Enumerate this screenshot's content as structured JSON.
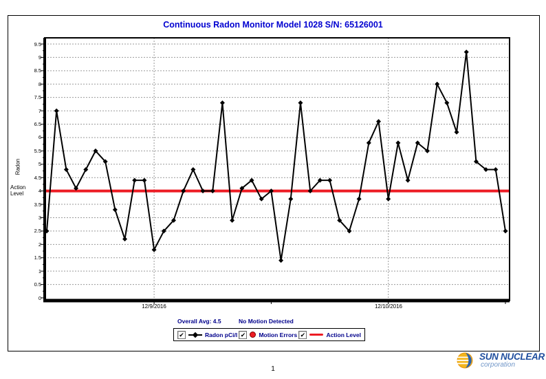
{
  "page": {
    "title": "Continuous Radon Monitor Model 1028 S/N: 65126001",
    "page_number": "1"
  },
  "chart_data": {
    "type": "line",
    "title": "Continuous Radon Monitor Model 1028 S/N: 65126001",
    "ylabel": "Radon",
    "ylim": [
      0,
      9.5
    ],
    "ytick_step": 0.5,
    "grid": true,
    "marker": "diamond",
    "series": [
      {
        "name": "Radon pCi/l",
        "values": [
          2.5,
          7.0,
          4.8,
          4.1,
          4.8,
          5.5,
          5.1,
          3.3,
          2.2,
          4.4,
          4.4,
          1.8,
          2.5,
          2.9,
          4.0,
          4.8,
          4.0,
          4.0,
          7.3,
          2.9,
          4.1,
          4.4,
          3.7,
          4.0,
          1.4,
          3.7,
          7.3,
          4.0,
          4.4,
          4.4,
          2.9,
          2.5,
          3.7,
          5.8,
          6.6,
          3.7,
          5.8,
          4.4,
          5.8,
          5.5,
          8.0,
          7.3,
          6.2,
          9.2,
          5.1,
          4.8,
          4.8,
          2.5
        ]
      }
    ],
    "action_level": 4.0,
    "action_label": {
      "line1": "Action",
      "line2": "Level"
    },
    "dates": [
      {
        "label": "12/9/2016",
        "index": 11
      },
      {
        "label": "12/10/2016",
        "index": 35
      }
    ]
  },
  "summary": {
    "overall_avg": "Overall Avg: 4.5",
    "motion_status": "No Motion Detected"
  },
  "legend": {
    "check_glyph": "✔",
    "items": [
      {
        "label": "Radon pCi/l",
        "checked": true,
        "marker": "black-diamond-line"
      },
      {
        "label": "Motion Errors",
        "checked": true,
        "marker": "red-dot"
      },
      {
        "label": "Action Level",
        "checked": true,
        "marker": "red-line"
      }
    ]
  },
  "footer": {
    "logo_name": "SUN NUCLEAR",
    "logo_sub": "corporation"
  },
  "colors": {
    "title_blue": "#0000d0",
    "text_navy": "#00008b",
    "action_red": "#ed1c24",
    "grid_gray": "#999999",
    "logo_blue": "#1f4e9e",
    "logo_light_blue": "#7096c8",
    "sun_yellow": "#f2b51c"
  }
}
